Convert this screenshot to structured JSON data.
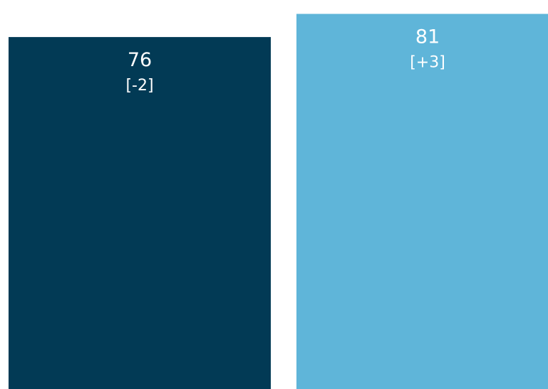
{
  "chart_data": {
    "type": "bar",
    "categories": [
      "",
      ""
    ],
    "values": [
      76,
      81
    ],
    "labels": [
      {
        "value": "76",
        "change": "[-2]"
      },
      {
        "value": "81",
        "change": "[+3]"
      }
    ],
    "colors": [
      "#023a55",
      "#5fb5d9"
    ],
    "title": "",
    "xlabel": "",
    "ylabel": "",
    "ylim": [
      0,
      84
    ],
    "grid": false,
    "legend": "none"
  }
}
